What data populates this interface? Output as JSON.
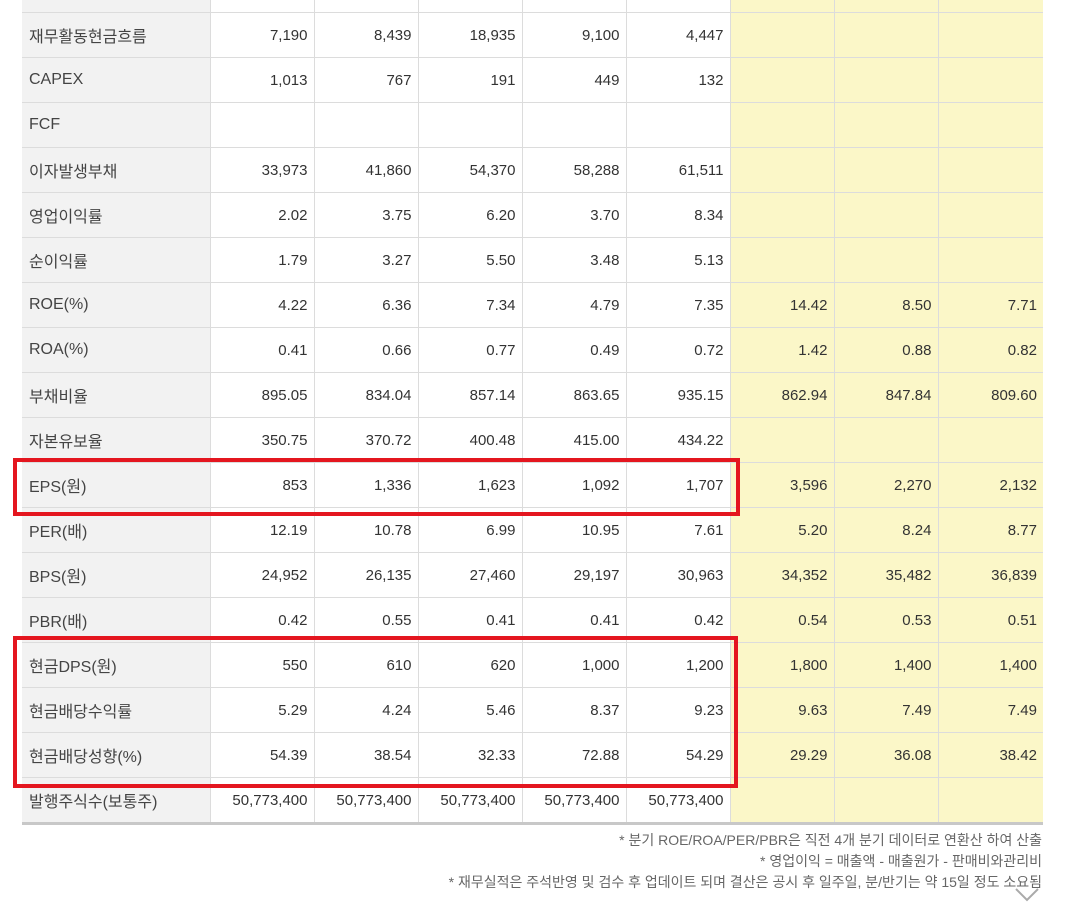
{
  "rows": [
    {
      "label": "재무활동현금흐름",
      "values": [
        "7,190",
        "8,439",
        "18,935",
        "9,100",
        "4,447",
        "",
        "",
        ""
      ]
    },
    {
      "label": "CAPEX",
      "values": [
        "1,013",
        "767",
        "191",
        "449",
        "132",
        "",
        "",
        ""
      ]
    },
    {
      "label": "FCF",
      "values": [
        "",
        "",
        "",
        "",
        "",
        "",
        "",
        ""
      ]
    },
    {
      "label": "이자발생부채",
      "values": [
        "33,973",
        "41,860",
        "54,370",
        "58,288",
        "61,511",
        "",
        "",
        ""
      ]
    },
    {
      "label": "영업이익률",
      "values": [
        "2.02",
        "3.75",
        "6.20",
        "3.70",
        "8.34",
        "",
        "",
        ""
      ]
    },
    {
      "label": "순이익률",
      "values": [
        "1.79",
        "3.27",
        "5.50",
        "3.48",
        "5.13",
        "",
        "",
        ""
      ]
    },
    {
      "label": "ROE(%)",
      "values": [
        "4.22",
        "6.36",
        "7.34",
        "4.79",
        "7.35",
        "14.42",
        "8.50",
        "7.71"
      ]
    },
    {
      "label": "ROA(%)",
      "values": [
        "0.41",
        "0.66",
        "0.77",
        "0.49",
        "0.72",
        "1.42",
        "0.88",
        "0.82"
      ]
    },
    {
      "label": "부채비율",
      "values": [
        "895.05",
        "834.04",
        "857.14",
        "863.65",
        "935.15",
        "862.94",
        "847.84",
        "809.60"
      ]
    },
    {
      "label": "자본유보율",
      "values": [
        "350.75",
        "370.72",
        "400.48",
        "415.00",
        "434.22",
        "",
        "",
        ""
      ]
    },
    {
      "label": "EPS(원)",
      "values": [
        "853",
        "1,336",
        "1,623",
        "1,092",
        "1,707",
        "3,596",
        "2,270",
        "2,132"
      ]
    },
    {
      "label": "PER(배)",
      "values": [
        "12.19",
        "10.78",
        "6.99",
        "10.95",
        "7.61",
        "5.20",
        "8.24",
        "8.77"
      ]
    },
    {
      "label": "BPS(원)",
      "values": [
        "24,952",
        "26,135",
        "27,460",
        "29,197",
        "30,963",
        "34,352",
        "35,482",
        "36,839"
      ]
    },
    {
      "label": "PBR(배)",
      "values": [
        "0.42",
        "0.55",
        "0.41",
        "0.41",
        "0.42",
        "0.54",
        "0.53",
        "0.51"
      ]
    },
    {
      "label": "현금DPS(원)",
      "values": [
        "550",
        "610",
        "620",
        "1,000",
        "1,200",
        "1,800",
        "1,400",
        "1,400"
      ]
    },
    {
      "label": "현금배당수익률",
      "values": [
        "5.29",
        "4.24",
        "5.46",
        "8.37",
        "9.23",
        "9.63",
        "7.49",
        "7.49"
      ]
    },
    {
      "label": "현금배당성향(%)",
      "values": [
        "54.39",
        "38.54",
        "32.33",
        "72.88",
        "54.29",
        "29.29",
        "36.08",
        "38.42"
      ]
    },
    {
      "label": "발행주식수(보통주)",
      "values": [
        "50,773,400",
        "50,773,400",
        "50,773,400",
        "50,773,400",
        "50,773,400",
        "",
        "",
        ""
      ]
    }
  ],
  "notes": [
    "* 분기 ROE/ROA/PER/PBR은 직전 4개 분기 데이터로 연환산 하여 산출",
    "* 영업이익 = 매출액 - 매출원가 - 판매비와관리비",
    "* 재무실적은 주석반영 및 검수 후 업데이트 되며 결산은 공시 후 일주일, 분/반기는 약 15일 정도 소요됨"
  ],
  "colors": {
    "estimate_bg": "#fbf7c8",
    "label_bg": "#f2f2f2",
    "highlight": "#e4161f"
  },
  "icons": {
    "expand": "chevron-down-icon"
  }
}
